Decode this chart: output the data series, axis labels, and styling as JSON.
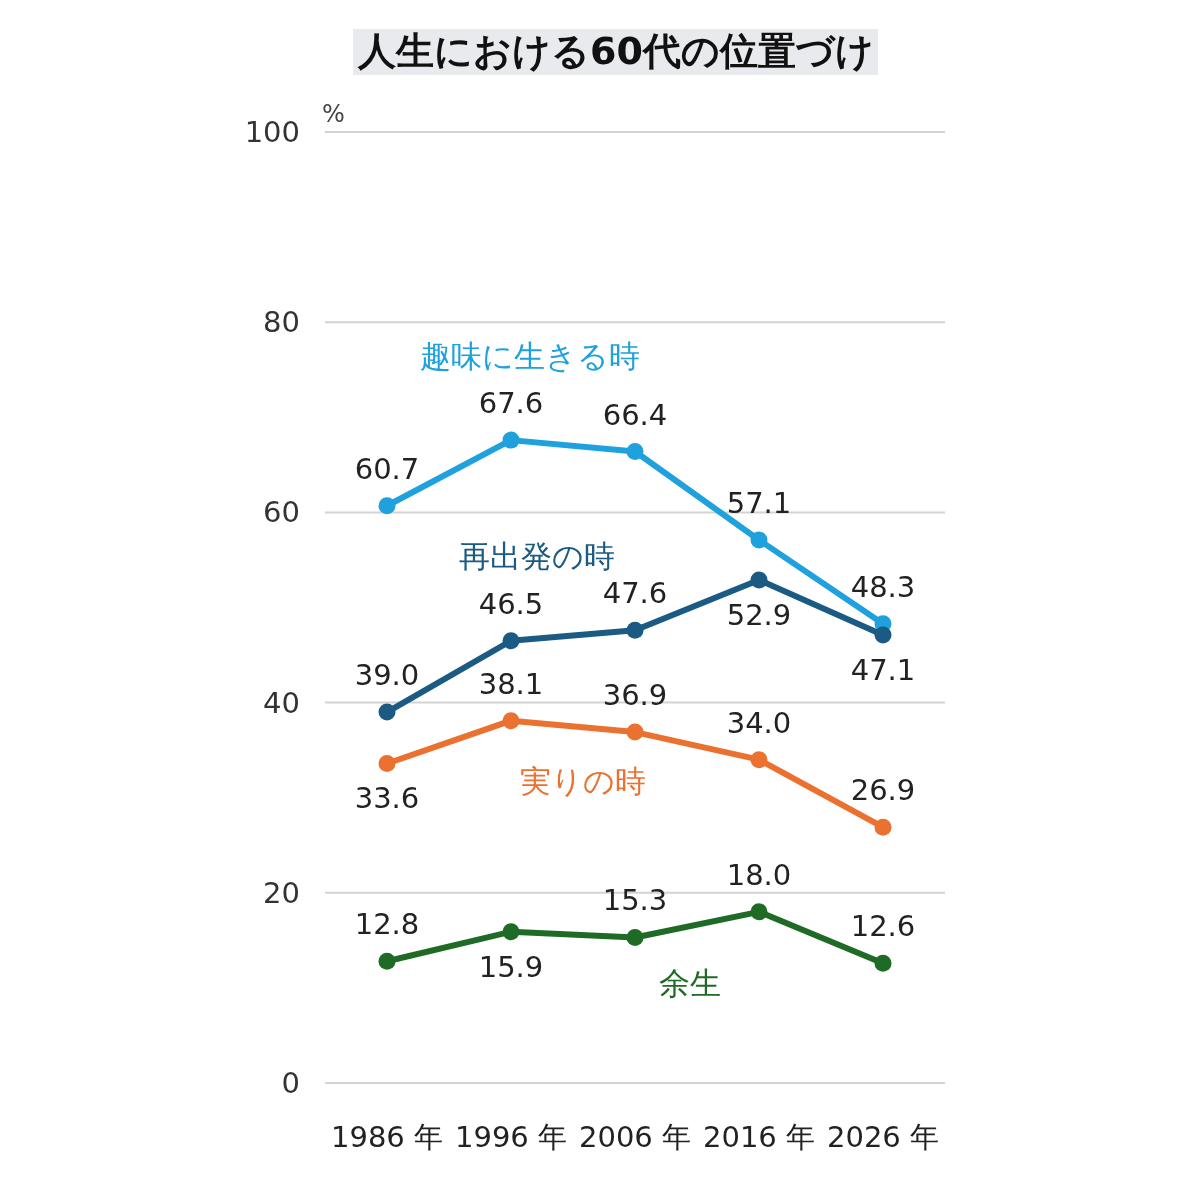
{
  "chart_data": {
    "type": "line",
    "title": "人生における60代の位置づけ",
    "ylabel": "%",
    "categories": [
      "1986 年",
      "1996 年",
      "2006 年",
      "2016 年",
      "2026 年"
    ],
    "series": [
      {
        "name": "趣味に生きる時",
        "color": "#1ea1dc",
        "values": [
          60.7,
          67.6,
          66.4,
          57.1,
          48.3
        ],
        "value_labels": [
          "60.7",
          "67.6",
          "66.4",
          "57.1",
          "48.3"
        ]
      },
      {
        "name": "再出発の時",
        "color": "#1b5a82",
        "values": [
          39.0,
          46.5,
          47.6,
          52.9,
          47.1
        ],
        "value_labels": [
          "39.0",
          "46.5",
          "47.6",
          "52.9",
          "47.1"
        ]
      },
      {
        "name": "実りの時",
        "color": "#ea7130",
        "values": [
          33.6,
          38.1,
          36.9,
          34.0,
          26.9
        ],
        "value_labels": [
          "33.6",
          "38.1",
          "36.9",
          "34.0",
          "26.9"
        ]
      },
      {
        "name": "余生",
        "color": "#1f6b26",
        "values": [
          12.8,
          15.9,
          15.3,
          18.0,
          12.6
        ],
        "value_labels": [
          "12.8",
          "15.9",
          "15.3",
          "18.0",
          "12.6"
        ]
      }
    ],
    "ylim": [
      0,
      100
    ],
    "yticks": [
      0,
      20,
      40,
      60,
      80,
      100
    ],
    "grid": "y",
    "marker": "circle"
  }
}
